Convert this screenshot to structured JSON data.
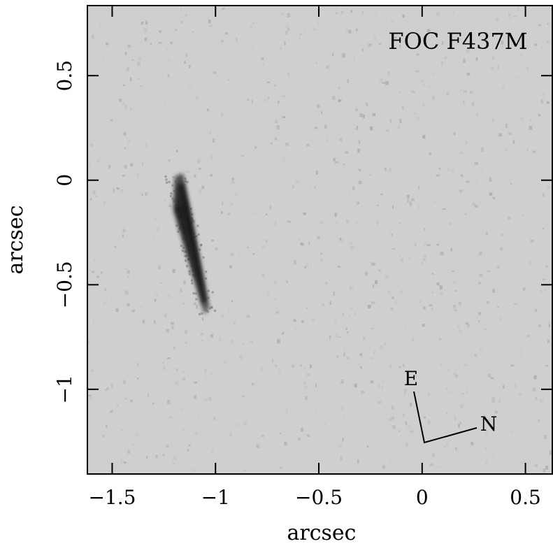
{
  "chart_data": {
    "type": "image",
    "x_label": "arcsec",
    "y_label": "arcsec",
    "annotation": "FOC F437M",
    "compass": {
      "east": "E",
      "north": "N"
    },
    "xlim": [
      -1.62,
      0.63
    ],
    "ylim": [
      -1.405,
      0.835
    ],
    "xticks": [
      {
        "value": -1.5,
        "label": "−1.5"
      },
      {
        "value": -1,
        "label": "−1"
      },
      {
        "value": -0.5,
        "label": "−0.5"
      },
      0,
      0.5
    ],
    "yticks": [
      {
        "value": -1,
        "label": "−1"
      },
      {
        "value": -0.5,
        "label": "−0.5"
      },
      0,
      0.5
    ]
  }
}
